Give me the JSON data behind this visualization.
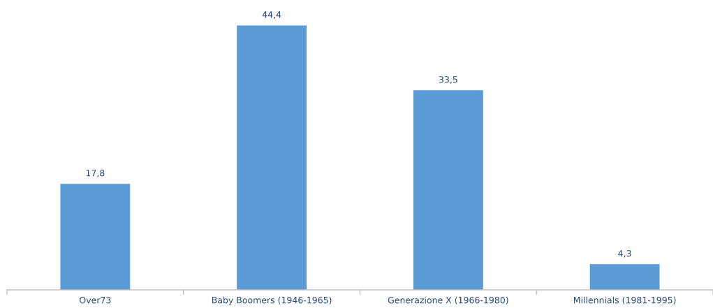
{
  "chart_data": {
    "type": "bar",
    "categories": [
      "Over73",
      "Baby Boomers (1946-1965)",
      "Generazione X (1966-1980)",
      "Millennials (1981-1995)"
    ],
    "values": [
      17.8,
      44.4,
      33.5,
      4.3
    ],
    "value_labels": [
      "17,8",
      "44,4",
      "33,5",
      "4,3"
    ],
    "color": "#5b9bd5",
    "tick_labels": "x"
  }
}
